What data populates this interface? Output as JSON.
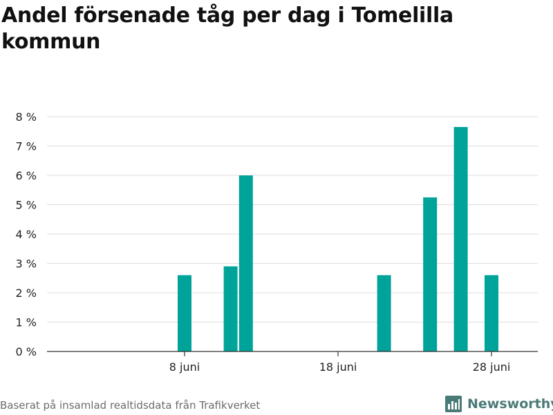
{
  "title": "Andel försenade tåg per dag i Tomelilla kommun",
  "footer": {
    "source": "Baserat på insamlad realtidsdata från Trafikverket",
    "brand": "Newsworthy"
  },
  "colors": {
    "bar": "#00a39a",
    "grid": "#dddddd",
    "axis": "#333333",
    "brand": "#4a7a78"
  },
  "chart_data": {
    "type": "bar",
    "title": "Andel försenade tåg per dag i Tomelilla kommun",
    "xlabel": "",
    "ylabel": "",
    "x_unit": "day of June",
    "x_range": [
      1,
      31
    ],
    "x_ticks": [
      {
        "x": 8,
        "label": "8 juni"
      },
      {
        "x": 18,
        "label": "18 juni"
      },
      {
        "x": 28,
        "label": "28 juni"
      }
    ],
    "y_ticks": [
      {
        "y": 0,
        "label": "0 %"
      },
      {
        "y": 1,
        "label": "1 %"
      },
      {
        "y": 2,
        "label": "2 %"
      },
      {
        "y": 3,
        "label": "3 %"
      },
      {
        "y": 4,
        "label": "4 %"
      },
      {
        "y": 5,
        "label": "5 %"
      },
      {
        "y": 6,
        "label": "6 %"
      },
      {
        "y": 7,
        "label": "7 %"
      },
      {
        "y": 8,
        "label": "8 %"
      }
    ],
    "ylim": [
      0,
      8
    ],
    "grid": true,
    "bars": [
      {
        "x": 8,
        "value": 2.6
      },
      {
        "x": 11,
        "value": 2.9
      },
      {
        "x": 12,
        "value": 6.0
      },
      {
        "x": 21,
        "value": 2.6
      },
      {
        "x": 24,
        "value": 5.25
      },
      {
        "x": 26,
        "value": 7.65
      },
      {
        "x": 28,
        "value": 2.6
      }
    ]
  }
}
